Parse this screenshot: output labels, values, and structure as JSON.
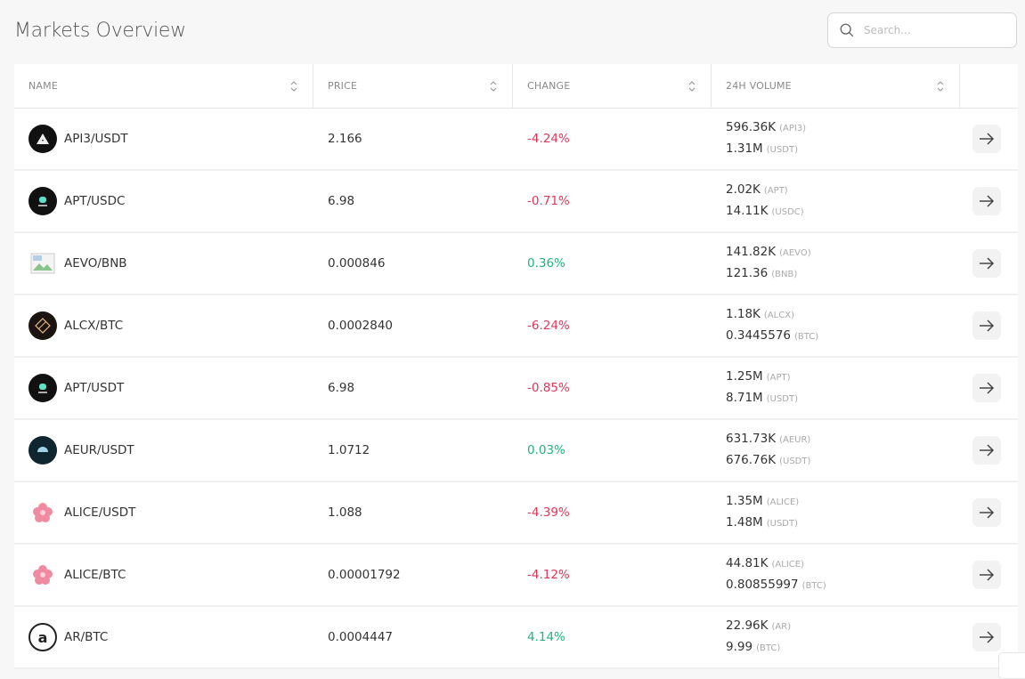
{
  "header": {
    "title": "Markets Overview",
    "search_placeholder": "Search..."
  },
  "table": {
    "columns": [
      "NAME",
      "PRICE",
      "CHANGE",
      "24H VOLUME"
    ],
    "rows": [
      {
        "pair": "API3/USDT",
        "icon": "api3-icon",
        "price": "2.166",
        "change": "-4.24%",
        "dir": "neg",
        "vol_base": "596.36K",
        "base": "(API3)",
        "vol_quote": "1.31M",
        "quote": "(USDT)"
      },
      {
        "pair": "APT/USDC",
        "icon": "apt-icon",
        "price": "6.98",
        "change": "-0.71%",
        "dir": "neg",
        "vol_base": "2.02K",
        "base": "(APT)",
        "vol_quote": "14.11K",
        "quote": "(USDC)"
      },
      {
        "pair": "AEVO/BNB",
        "icon": "broken-image-icon",
        "price": "0.000846",
        "change": "0.36%",
        "dir": "pos",
        "vol_base": "141.82K",
        "base": "(AEVO)",
        "vol_quote": "121.36",
        "quote": "(BNB)"
      },
      {
        "pair": "ALCX/BTC",
        "icon": "alcx-icon",
        "price": "0.0002840",
        "change": "-6.24%",
        "dir": "neg",
        "vol_base": "1.18K",
        "base": "(ALCX)",
        "vol_quote": "0.3445576",
        "quote": "(BTC)"
      },
      {
        "pair": "APT/USDT",
        "icon": "apt-icon",
        "price": "6.98",
        "change": "-0.85%",
        "dir": "neg",
        "vol_base": "1.25M",
        "base": "(APT)",
        "vol_quote": "8.71M",
        "quote": "(USDT)"
      },
      {
        "pair": "AEUR/USDT",
        "icon": "aeur-icon",
        "price": "1.0712",
        "change": "0.03%",
        "dir": "pos",
        "vol_base": "631.73K",
        "base": "(AEUR)",
        "vol_quote": "676.76K",
        "quote": "(USDT)"
      },
      {
        "pair": "ALICE/USDT",
        "icon": "alice-icon",
        "price": "1.088",
        "change": "-4.39%",
        "dir": "neg",
        "vol_base": "1.35M",
        "base": "(ALICE)",
        "vol_quote": "1.48M",
        "quote": "(USDT)"
      },
      {
        "pair": "ALICE/BTC",
        "icon": "alice-icon",
        "price": "0.00001792",
        "change": "-4.12%",
        "dir": "neg",
        "vol_base": "44.81K",
        "base": "(ALICE)",
        "vol_quote": "0.80855997",
        "quote": "(BTC)"
      },
      {
        "pair": "AR/BTC",
        "icon": "ar-icon",
        "price": "0.0004447",
        "change": "4.14%",
        "dir": "pos",
        "vol_base": "22.96K",
        "base": "(AR)",
        "vol_quote": "9.99",
        "quote": "(BTC)"
      }
    ]
  },
  "colors": {
    "negative": "#e0365a",
    "positive": "#1fb57c"
  }
}
